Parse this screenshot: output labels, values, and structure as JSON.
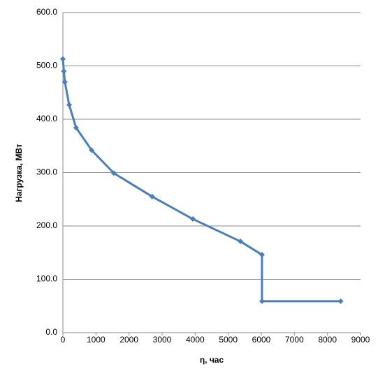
{
  "chart_data": {
    "type": "line",
    "x_label": "η, час",
    "y_label": "Нагрузка, МВт",
    "x": [
      0,
      30,
      60,
      190,
      400,
      870,
      1540,
      2700,
      3930,
      5370,
      6020,
      6020,
      8400
    ],
    "series": [
      {
        "name": "Нагрузка",
        "color": "#4a7ebb",
        "values": [
          513,
          490,
          470,
          427,
          384,
          342,
          299,
          255,
          213,
          171,
          146,
          59,
          59
        ]
      }
    ],
    "xlim": [
      0,
      9000
    ],
    "xticks": [
      0,
      1000,
      2000,
      3000,
      4000,
      5000,
      6000,
      7000,
      8000,
      9000
    ],
    "ylim": [
      0,
      600
    ],
    "yticks": [
      {
        "value": 0,
        "label": "0.0"
      },
      {
        "value": 100,
        "label": "100.0"
      },
      {
        "value": 200,
        "label": "200.0"
      },
      {
        "value": 300,
        "label": "300.0"
      },
      {
        "value": 400,
        "label": "400.0"
      },
      {
        "value": 500,
        "label": "500.0"
      },
      {
        "value": 600,
        "label": "600.0"
      }
    ],
    "grid": true
  }
}
